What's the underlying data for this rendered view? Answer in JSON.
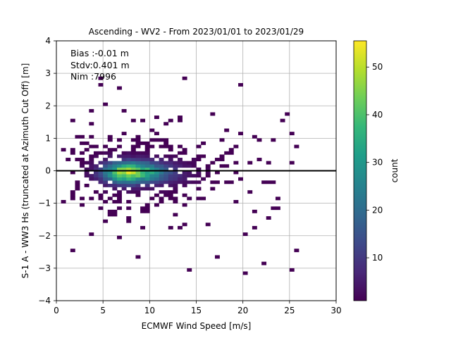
{
  "chart_data": {
    "type": "heatmap",
    "title": "Ascending - WV2 - From 2023/01/01 to 2023/01/29",
    "xlabel": "ECMWF Wind Speed [m/s]",
    "ylabel": "S-1 A - WW3 Hs (truncated at Azimuth Cut Off) [m]",
    "xlim": [
      0,
      30
    ],
    "ylim": [
      -4,
      4
    ],
    "xticks": [
      "0",
      "5",
      "10",
      "15",
      "20",
      "25",
      "30"
    ],
    "yticks": [
      "4",
      "3",
      "2",
      "1",
      "0",
      "−1",
      "−2",
      "−3",
      "−4"
    ],
    "grid": true,
    "reference_line_y": 0,
    "annotations": [
      "Bias :-0.01 m",
      "Stdv:0.401 m",
      "Nim :7996"
    ],
    "colorbar": {
      "label": "count",
      "range": [
        1,
        55.5
      ],
      "ticks": [
        "10",
        "20",
        "30",
        "40",
        "50"
      ],
      "colormap": "viridis"
    },
    "density": {
      "x_peak": 7.5,
      "y_peak": -0.05,
      "peak_count": 55,
      "x_extent": [
        0.5,
        26
      ],
      "y_extent": [
        -3.3,
        2.9
      ]
    }
  }
}
